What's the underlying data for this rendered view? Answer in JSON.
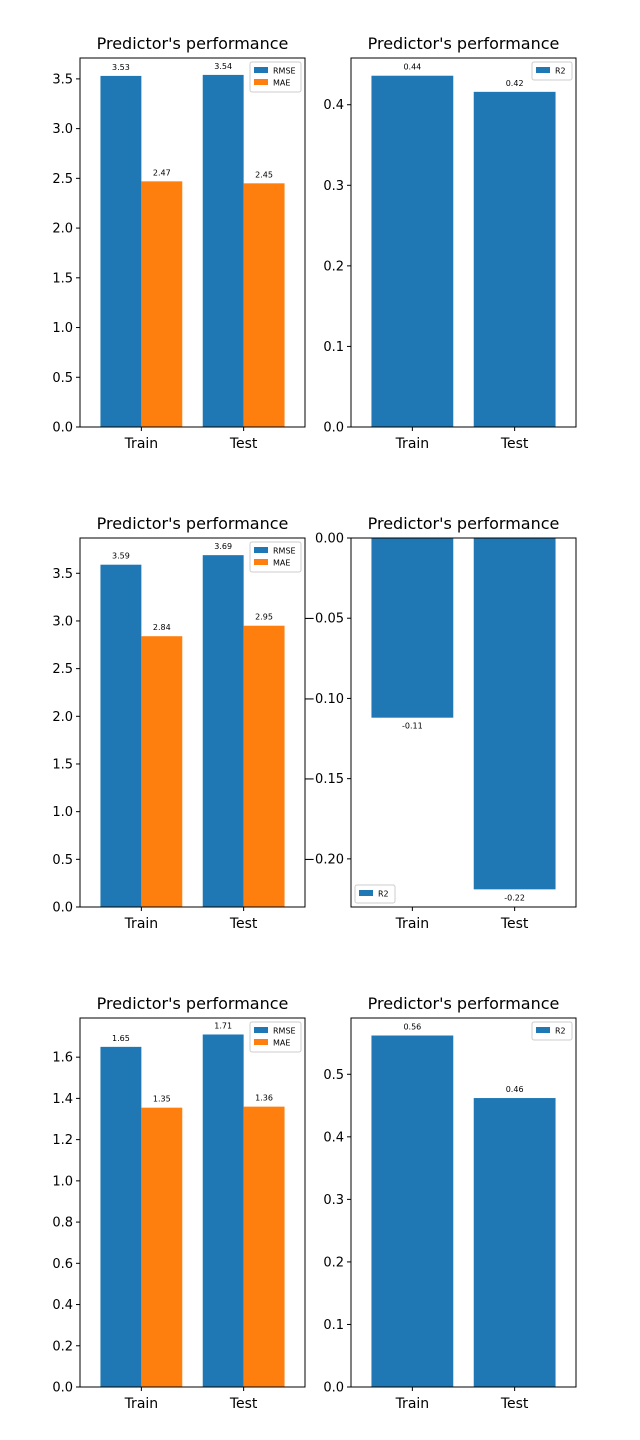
{
  "colors": {
    "blue": "#1f77b4",
    "orange": "#ff7f0e",
    "axis": "#000000",
    "background": "#ffffff"
  },
  "chart_data": [
    {
      "type": "bar",
      "title": "Predictor's performance",
      "categories": [
        "Train",
        "Test"
      ],
      "series": [
        {
          "name": "RMSE",
          "values": [
            3.53,
            3.54
          ],
          "labels": [
            "3.53",
            "3.54"
          ],
          "color": "#1f77b4"
        },
        {
          "name": "MAE",
          "values": [
            2.47,
            2.45
          ],
          "labels": [
            "2.47",
            "2.45"
          ],
          "color": "#ff7f0e"
        }
      ],
      "ylim": [
        0,
        3.71
      ],
      "yticks": [
        0,
        0.5,
        1.0,
        1.5,
        2.0,
        2.5,
        3.0,
        3.5
      ],
      "ytick_labels": [
        "0.0",
        "0.5",
        "1.0",
        "1.5",
        "2.0",
        "2.5",
        "3.0",
        "3.5"
      ],
      "legend": "top-right",
      "grid": false
    },
    {
      "type": "bar",
      "title": "Predictor's performance",
      "categories": [
        "Train",
        "Test"
      ],
      "series": [
        {
          "name": "R2",
          "values": [
            0.436,
            0.416
          ],
          "labels": [
            "0.44",
            "0.42"
          ],
          "color": "#1f77b4"
        }
      ],
      "ylim": [
        0,
        0.458
      ],
      "yticks": [
        0,
        0.1,
        0.2,
        0.3,
        0.4
      ],
      "ytick_labels": [
        "0.0",
        "0.1",
        "0.2",
        "0.3",
        "0.4"
      ],
      "legend": "top-right",
      "grid": false
    },
    {
      "type": "bar",
      "title": "Predictor's performance",
      "categories": [
        "Train",
        "Test"
      ],
      "series": [
        {
          "name": "RMSE",
          "values": [
            3.59,
            3.69
          ],
          "labels": [
            "3.59",
            "3.69"
          ],
          "color": "#1f77b4"
        },
        {
          "name": "MAE",
          "values": [
            2.84,
            2.95
          ],
          "labels": [
            "2.84",
            "2.95"
          ],
          "color": "#ff7f0e"
        }
      ],
      "ylim": [
        0,
        3.87
      ],
      "yticks": [
        0,
        0.5,
        1.0,
        1.5,
        2.0,
        2.5,
        3.0,
        3.5
      ],
      "ytick_labels": [
        "0.0",
        "0.5",
        "1.0",
        "1.5",
        "2.0",
        "2.5",
        "3.0",
        "3.5"
      ],
      "legend": "top-right",
      "grid": false
    },
    {
      "type": "bar",
      "title": "Predictor's performance",
      "categories": [
        "Train",
        "Test"
      ],
      "series": [
        {
          "name": "R2",
          "values": [
            -0.112,
            -0.219
          ],
          "labels": [
            "-0.11",
            "-0.22"
          ],
          "color": "#1f77b4"
        }
      ],
      "ylim": [
        -0.23,
        0
      ],
      "yticks": [
        -0.2,
        -0.15,
        -0.1,
        -0.05,
        0
      ],
      "ytick_labels": [
        "−0.20",
        "−0.15",
        "−0.10",
        "−0.05",
        "0.00"
      ],
      "legend": "bottom-left",
      "grid": false
    },
    {
      "type": "bar",
      "title": "Predictor's performance",
      "categories": [
        "Train",
        "Test"
      ],
      "series": [
        {
          "name": "RMSE",
          "values": [
            1.65,
            1.71
          ],
          "labels": [
            "1.65",
            "1.71"
          ],
          "color": "#1f77b4"
        },
        {
          "name": "MAE",
          "values": [
            1.355,
            1.36
          ],
          "labels": [
            "1.35",
            "1.36"
          ],
          "color": "#ff7f0e"
        }
      ],
      "ylim": [
        0,
        1.79
      ],
      "yticks": [
        0,
        0.2,
        0.4,
        0.6,
        0.8,
        1.0,
        1.2,
        1.4,
        1.6
      ],
      "ytick_labels": [
        "0.0",
        "0.2",
        "0.4",
        "0.6",
        "0.8",
        "1.0",
        "1.2",
        "1.4",
        "1.6"
      ],
      "legend": "top-right",
      "grid": false
    },
    {
      "type": "bar",
      "title": "Predictor's performance",
      "categories": [
        "Train",
        "Test"
      ],
      "series": [
        {
          "name": "R2",
          "values": [
            0.562,
            0.462
          ],
          "labels": [
            "0.56",
            "0.46"
          ],
          "color": "#1f77b4"
        }
      ],
      "ylim": [
        0,
        0.59
      ],
      "yticks": [
        0,
        0.1,
        0.2,
        0.3,
        0.4,
        0.5
      ],
      "ytick_labels": [
        "0.0",
        "0.1",
        "0.2",
        "0.3",
        "0.4",
        "0.5"
      ],
      "legend": "top-right",
      "grid": false
    }
  ]
}
